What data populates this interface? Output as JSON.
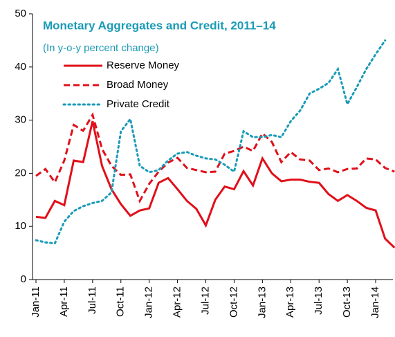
{
  "chart_data": {
    "type": "line",
    "title": "Monetary Aggregates and Credit, 2011–14",
    "subtitle": "(In y-o-y percent change)",
    "categories": [
      "Jan-11",
      null,
      null,
      "Apr-11",
      null,
      null,
      "Jul-11",
      null,
      null,
      "Oct-11",
      null,
      null,
      "Jan-12",
      null,
      null,
      "Apr-12",
      null,
      null,
      "Jul-12",
      null,
      null,
      "Oct-12",
      null,
      null,
      "Jan-13",
      null,
      null,
      "Apr-13",
      null,
      null,
      "Jul-13",
      null,
      null,
      "Oct-13",
      null,
      null,
      "Jan-14",
      null,
      null
    ],
    "series": [
      {
        "name": "Reserve Money",
        "color": "#e0101a",
        "dash": "solid",
        "values": [
          11.8,
          11.6,
          14.8,
          14,
          22.4,
          22.1,
          29.8,
          21.4,
          17,
          14.2,
          12,
          13,
          13.4,
          18.2,
          19.1,
          17,
          14.8,
          13.3,
          10.2,
          15,
          17.5,
          17,
          20.4,
          17.7,
          22.8,
          20,
          18.5,
          18.8,
          18.8,
          18.4,
          18.2,
          16.1,
          14.8,
          15.9,
          14.8,
          13.5,
          13,
          7.7,
          6
        ]
      },
      {
        "name": "Broad Money",
        "color": "#e0101a",
        "dash": "dashed",
        "values": [
          19.5,
          20.8,
          18.3,
          22.4,
          29.1,
          28,
          31,
          24.6,
          21.4,
          19.7,
          19.8,
          14.8,
          18,
          20.3,
          22,
          22.9,
          21,
          20.6,
          20.2,
          20.3,
          23.7,
          24.2,
          25,
          24.2,
          27.5,
          25.9,
          22.1,
          24,
          22.6,
          22.4,
          20.6,
          20.9,
          20.2,
          20.8,
          20.9,
          22.8,
          22.6,
          21,
          20.3
        ]
      },
      {
        "name": "Private Credit",
        "color": "#1a9bb8",
        "dash": "dotted",
        "values": [
          7.4,
          7,
          6.8,
          10.9,
          12.9,
          13.8,
          14.4,
          14.8,
          16.4,
          27.9,
          30.2,
          21.4,
          20.2,
          20.6,
          22.4,
          23.7,
          24,
          23.3,
          22.8,
          22.6,
          21.6,
          20.3,
          27.9,
          26.8,
          26.8,
          27.2,
          26.8,
          29.8,
          31.8,
          35,
          35.9,
          37,
          39.6,
          33,
          36.2,
          39.6,
          42.4,
          45,
          null
        ]
      }
    ],
    "ylim": [
      0,
      50
    ],
    "yticks": [
      0,
      10,
      20,
      30,
      40,
      50
    ],
    "grid": false
  }
}
